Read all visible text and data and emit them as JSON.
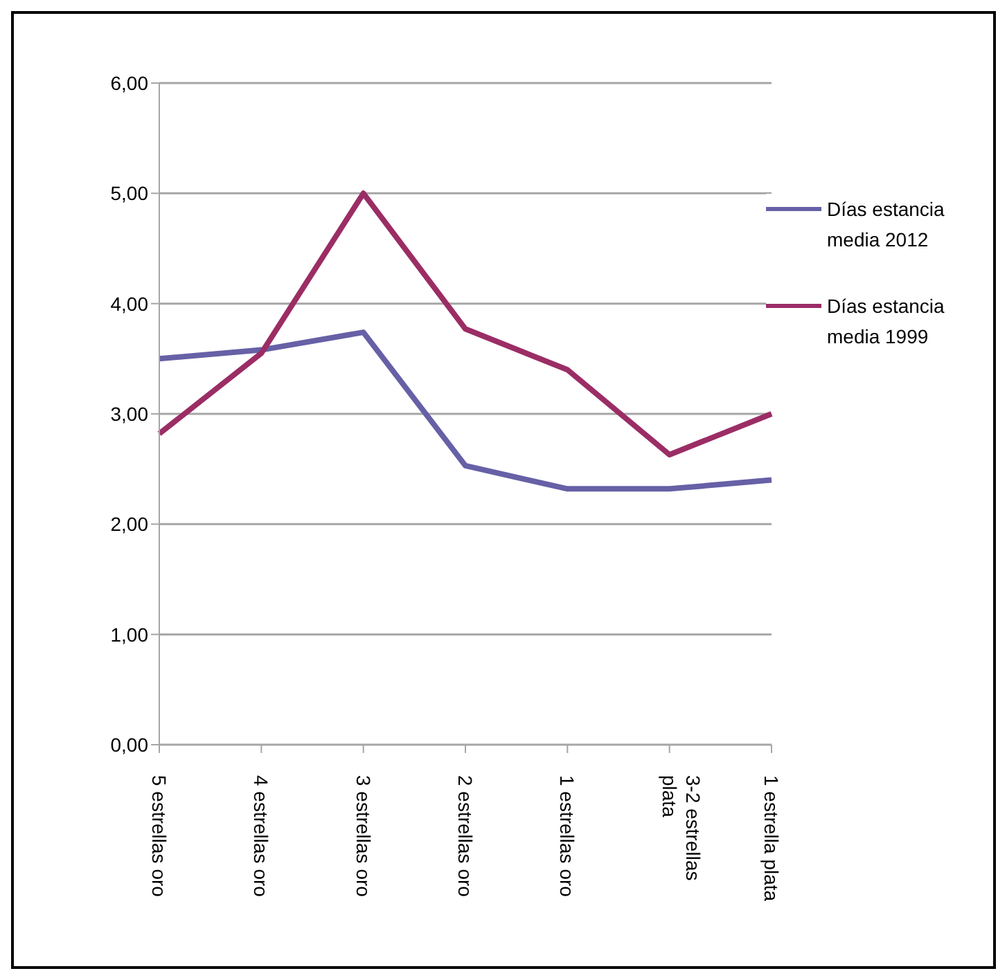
{
  "chart_data": {
    "type": "line",
    "categories": [
      "5 estrellas oro",
      "4 estrellas oro",
      "3 estrellas oro",
      "2 estrellas oro",
      "1 estrellas oro",
      "3-2 estrellas plata",
      "1 estrella plata"
    ],
    "series": [
      {
        "name": "Días estancia media 2012",
        "color": "#6661a6",
        "values": [
          3.5,
          3.58,
          3.74,
          2.53,
          2.32,
          2.32,
          2.4
        ]
      },
      {
        "name": "Días estancia media 1999",
        "color": "#9b2d65",
        "values": [
          2.82,
          3.55,
          5.0,
          3.77,
          3.4,
          2.63,
          3.0
        ]
      }
    ],
    "ylim": [
      0,
      6
    ],
    "yticks": [
      {
        "value": 0,
        "label": "0,00"
      },
      {
        "value": 1,
        "label": "1,00"
      },
      {
        "value": 2,
        "label": "2,00"
      },
      {
        "value": 3,
        "label": "3,00"
      },
      {
        "value": 4,
        "label": "4,00"
      },
      {
        "value": 5,
        "label": "5,00"
      },
      {
        "value": 6,
        "label": "6,00"
      }
    ],
    "grid": "y",
    "legend": "right",
    "marker": "none",
    "line_style": "solid"
  }
}
